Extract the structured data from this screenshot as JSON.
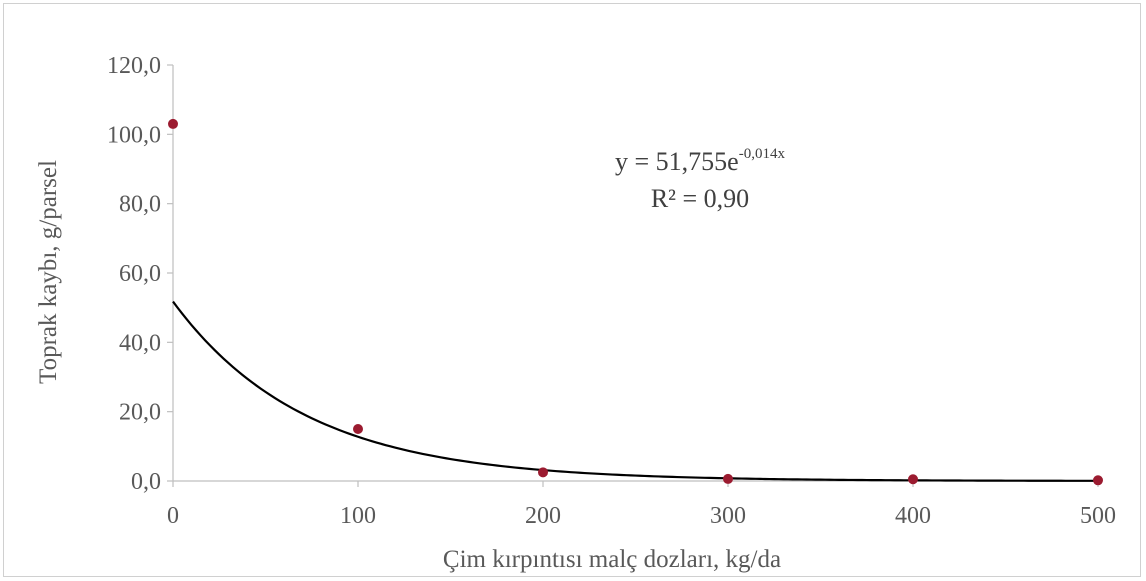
{
  "chart_data": {
    "type": "scatter",
    "xlabel": "Çim kırpıntısı malç dozları, kg/da",
    "ylabel": "Toprak kaybı, g/parsel",
    "xlim": [
      0,
      500
    ],
    "ylim": [
      0,
      120
    ],
    "x_ticks": [
      "0",
      "100",
      "200",
      "300",
      "400",
      "500"
    ],
    "y_ticks": [
      "0,0",
      "20,0",
      "40,0",
      "60,0",
      "80,0",
      "100,0",
      "120,0"
    ],
    "grid": false,
    "series": [
      {
        "x": [
          0,
          100,
          200,
          300,
          400,
          500
        ],
        "y": [
          103.0,
          15.0,
          2.5,
          0.6,
          0.5,
          0.2
        ],
        "color": "#9b1b30"
      }
    ],
    "trendline": {
      "type": "exponential",
      "a": 51.755,
      "b": -0.014,
      "color": "#000000",
      "equation_base": "y = 51,755e",
      "equation_exp": "-0,014x",
      "r2_text": "R² = 0,90"
    }
  }
}
